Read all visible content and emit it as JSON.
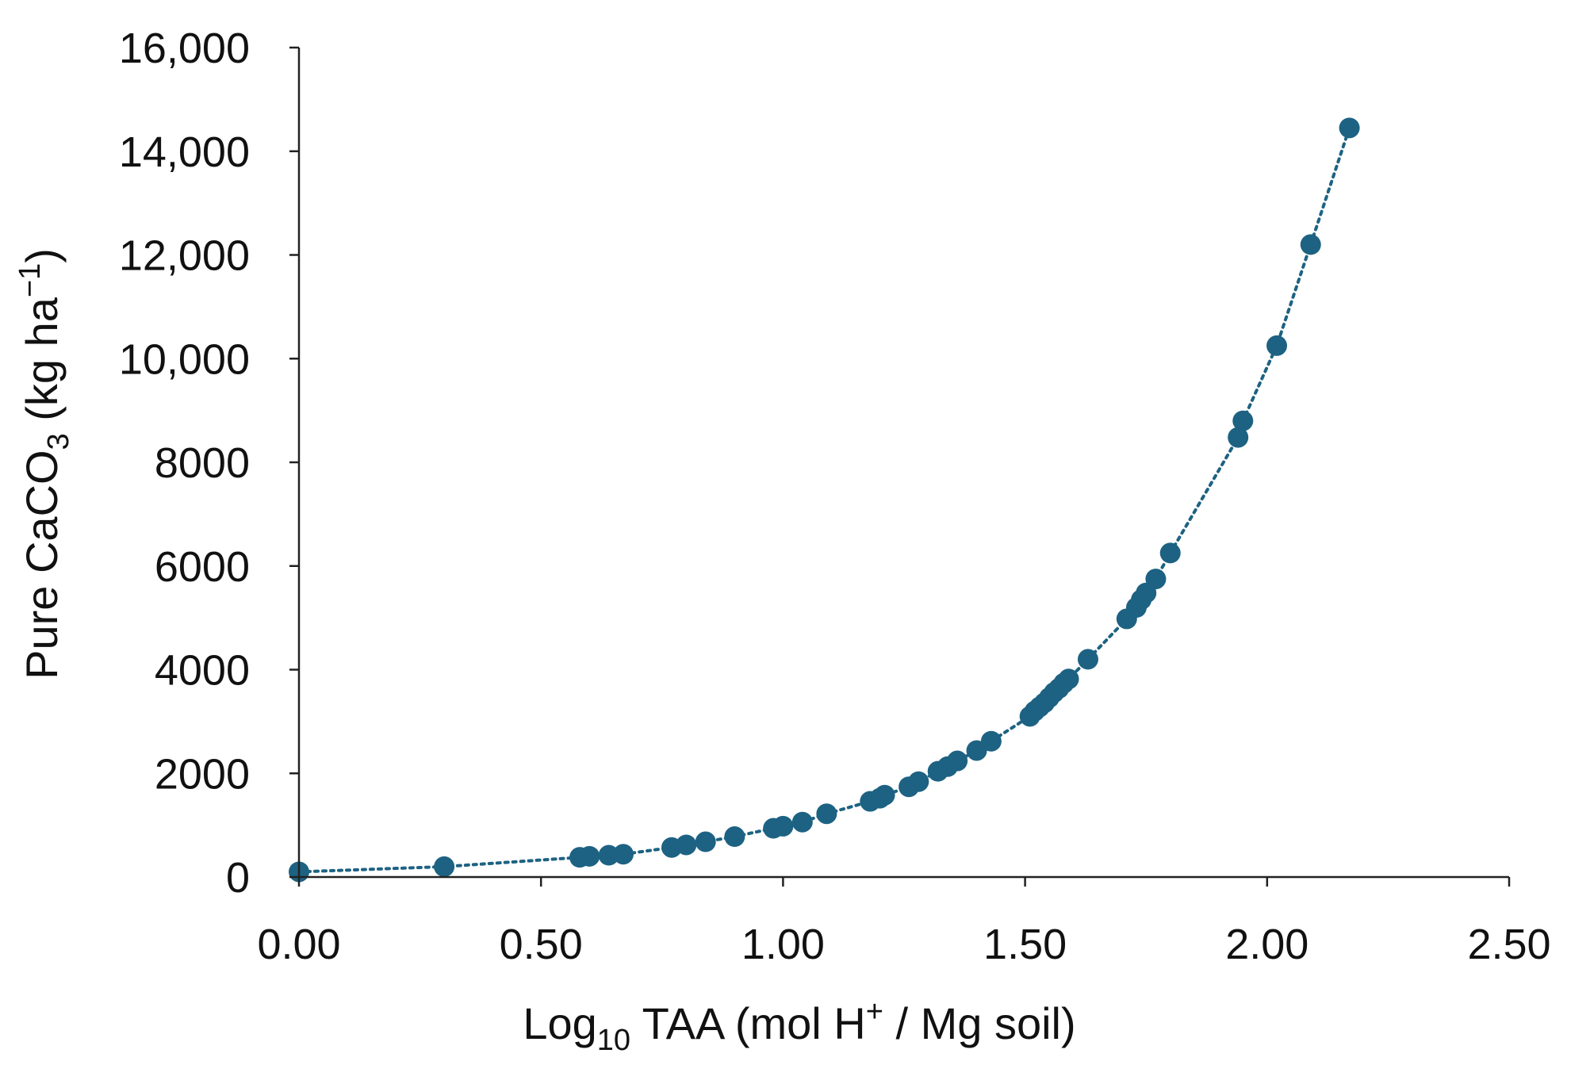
{
  "chart_data": {
    "type": "scatter",
    "xlabel": {
      "pre": "Log",
      "sub": "10",
      "post": " TAA (mol H",
      "sup": "+",
      "tail": " / Mg soil)"
    },
    "ylabel": {
      "pre": "Pure CaCO",
      "sub": "3",
      "mid": " (kg ha",
      "sup": "−1",
      "tail": ")"
    },
    "xlim": [
      0,
      2.5
    ],
    "ylim": [
      0,
      16000
    ],
    "x_ticks": [
      0,
      0.5,
      1.0,
      1.5,
      2.0,
      2.5
    ],
    "x_tick_labels": [
      "0.00",
      "0.50",
      "1.00",
      "1.50",
      "2.00",
      "2.50"
    ],
    "y_ticks": [
      0,
      2000,
      4000,
      6000,
      8000,
      10000,
      12000,
      14000,
      16000
    ],
    "y_tick_labels": [
      "0",
      "2000",
      "4000",
      "6000",
      "8000",
      "10,000",
      "12,000",
      "14,000",
      "16,000"
    ],
    "grid": false,
    "trendline": "dotted",
    "color": "#1d6282",
    "series": [
      {
        "x": [
          0.0,
          0.3,
          0.58,
          0.6,
          0.64,
          0.67,
          0.77,
          0.8,
          0.84,
          0.9,
          0.98,
          1.0,
          1.04,
          1.09,
          1.18,
          1.2,
          1.21,
          1.26,
          1.28,
          1.32,
          1.34,
          1.36,
          1.4,
          1.43,
          1.51,
          1.52,
          1.53,
          1.54,
          1.55,
          1.56,
          1.57,
          1.58,
          1.59,
          1.63,
          1.71,
          1.73,
          1.74,
          1.75,
          1.77,
          1.8,
          1.94,
          1.95,
          2.02,
          2.09,
          2.17
        ],
        "y": [
          100,
          200,
          380,
          400,
          420,
          440,
          570,
          620,
          680,
          780,
          940,
          980,
          1060,
          1220,
          1460,
          1520,
          1580,
          1740,
          1840,
          2040,
          2130,
          2240,
          2440,
          2620,
          3100,
          3200,
          3280,
          3360,
          3460,
          3560,
          3640,
          3740,
          3820,
          4200,
          4980,
          5200,
          5350,
          5480,
          5750,
          6250,
          8480,
          8800,
          10250,
          12200,
          14450
        ]
      }
    ]
  }
}
